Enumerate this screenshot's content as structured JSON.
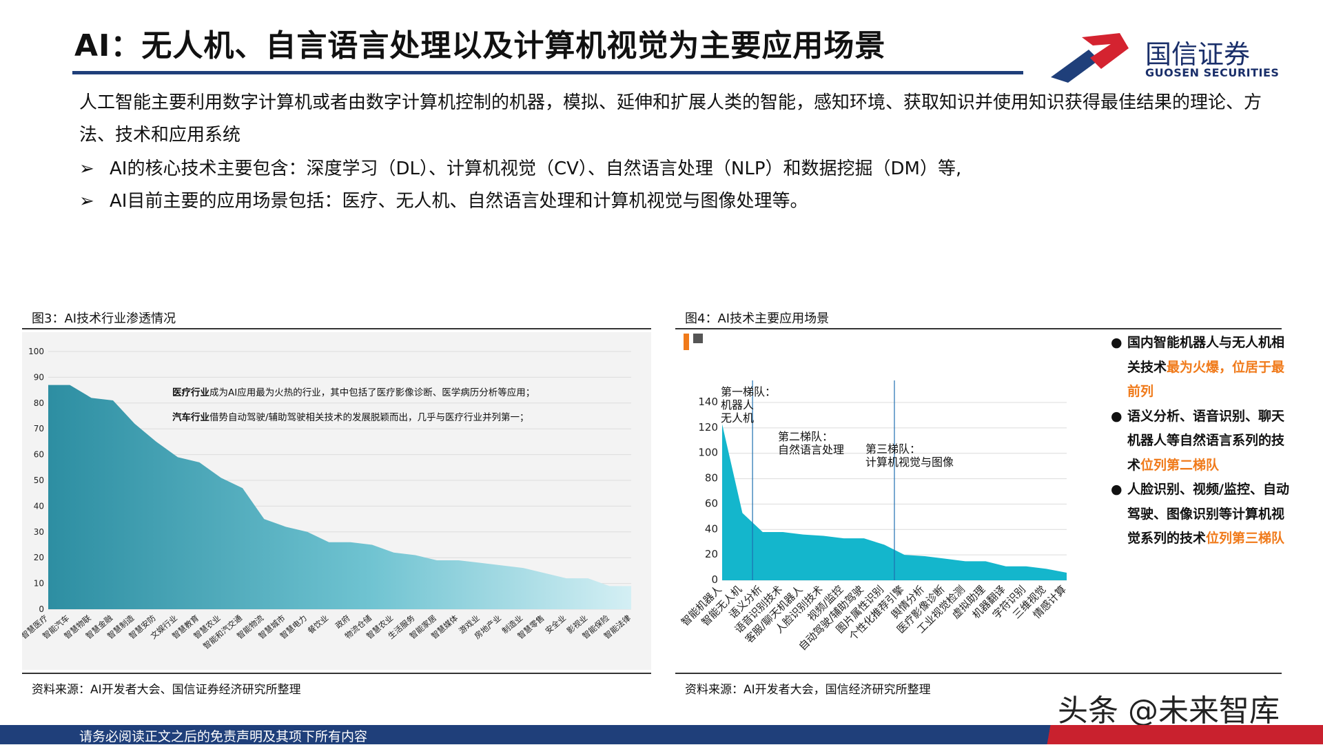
{
  "title": "AI：无人机、自言语言处理以及计算机视觉为主要应用场景",
  "logo": {
    "cn": "国信证券",
    "en": "GUOSEN SECURITIES"
  },
  "intro": "人工智能主要利用数字计算机或者由数字计算机控制的机器，模拟、延伸和扩展人类的智能，感知环境、获取知识并使用知识获得最佳结果的理论、方法、技术和应用系统",
  "bullets": [
    "AI的核心技术主要包含：深度学习（DL）、计算机视觉（CV）、自然语言处理（NLP）和数据挖掘（DM）等,",
    "AI目前主要的应用场景包括：医疗、无人机、自然语言处理和计算机视觉与图像处理等。"
  ],
  "bullet_marker": "➢",
  "fig3": {
    "caption": "图3：AI技术行业渗透情况",
    "source": "资料来源：AI开发者大会、国信证券经济研究所整理",
    "note1_bold": "医疗行业",
    "note1_rest": "成为AI应用最为火热的行业，其中包括了医疗影像诊断、医学病历分析等应用；",
    "note2_bold": "汽车行业",
    "note2_rest": "借势自动驾驶/辅助驾驶相关技术的发展脱颖而出，几乎与医疗行业并列第一；"
  },
  "fig4": {
    "caption": "图4：AI技术主要应用场景",
    "source": "资料来源：AI开发者大会，国信经济研究所整理",
    "tier1": [
      "第一梯队：",
      "机器人",
      "无人机"
    ],
    "tier2": [
      "第二梯队：",
      "自然语言处理"
    ],
    "tier3": [
      "第三梯队：",
      "计算机视觉与图像"
    ],
    "notes": [
      {
        "text": "国内智能机器人与无人机相关技术",
        "highlight": "最为火爆，位居于最前列"
      },
      {
        "text": "语义分析、语音识别、聊天机器人等自然语言系列的技术",
        "highlight": "位列第二梯队"
      },
      {
        "text": "人脸识别、视频/监控、自动驾驶、图像识别等计算机视觉系列的技术",
        "highlight": "位列第三梯队"
      }
    ],
    "bullet_dot": "●"
  },
  "footer": "请务必阅读正文之后的免责声明及其项下所有内容",
  "watermark": "头条 @未来智库",
  "colors": {
    "navy": "#1f3f7a",
    "red": "#c9212e",
    "teal_dark": "#2f8fa3",
    "teal_light": "#d4eff4",
    "cyan": "#12b5cb",
    "orange": "#f07a1a"
  },
  "chart_data": [
    {
      "type": "area",
      "title": "",
      "categories": [
        "智慧医疗",
        "智能汽车",
        "智慧物联",
        "智慧金融",
        "智慧制造",
        "智慧安防",
        "文娱行业",
        "智慧教育",
        "智慧农业",
        "智能和汽交通",
        "智能物流",
        "智慧城市",
        "智慧电力",
        "餐饮业",
        "政府",
        "物流仓储",
        "智慧农业",
        "生活服务",
        "智能家居",
        "智慧媒体",
        "游戏业",
        "房地产业",
        "制造业",
        "智慧零售",
        "安全业",
        "影视业",
        "智能保险",
        "智能法律"
      ],
      "values": [
        87,
        87,
        82,
        81,
        72,
        65,
        59,
        57,
        51,
        47,
        35,
        32,
        30,
        26,
        26,
        25,
        22,
        21,
        19,
        19,
        18,
        17,
        16,
        14,
        12,
        12,
        9,
        9
      ],
      "ylim": [
        0,
        100
      ],
      "yticks": [
        0,
        10,
        20,
        30,
        40,
        50,
        60,
        70,
        80,
        90,
        100
      ],
      "xlabel": "",
      "ylabel": "",
      "grid": true
    },
    {
      "type": "area",
      "title": "",
      "categories": [
        "智能机器人",
        "智能无人机",
        "语义分析",
        "语音识别技术",
        "客服/聊天机器人",
        "人脸识别技术",
        "视频/监控",
        "自动驾驶/辅助驾驶",
        "图片属性识别",
        "个性化推荐引擎",
        "舆情分析",
        "医疗影像诊断",
        "工业视觉检测",
        "虚拟助理",
        "机器翻译",
        "字符识别",
        "三维视觉",
        "情感计算"
      ],
      "values": [
        123,
        53,
        38,
        38,
        36,
        35,
        33,
        33,
        28,
        20,
        19,
        17,
        15,
        15,
        11,
        11,
        9,
        6
      ],
      "ylim": [
        0,
        140
      ],
      "yticks": [
        0,
        20,
        40,
        60,
        80,
        100,
        120,
        140
      ],
      "xlabel": "",
      "ylabel": "",
      "grid": true
    }
  ]
}
